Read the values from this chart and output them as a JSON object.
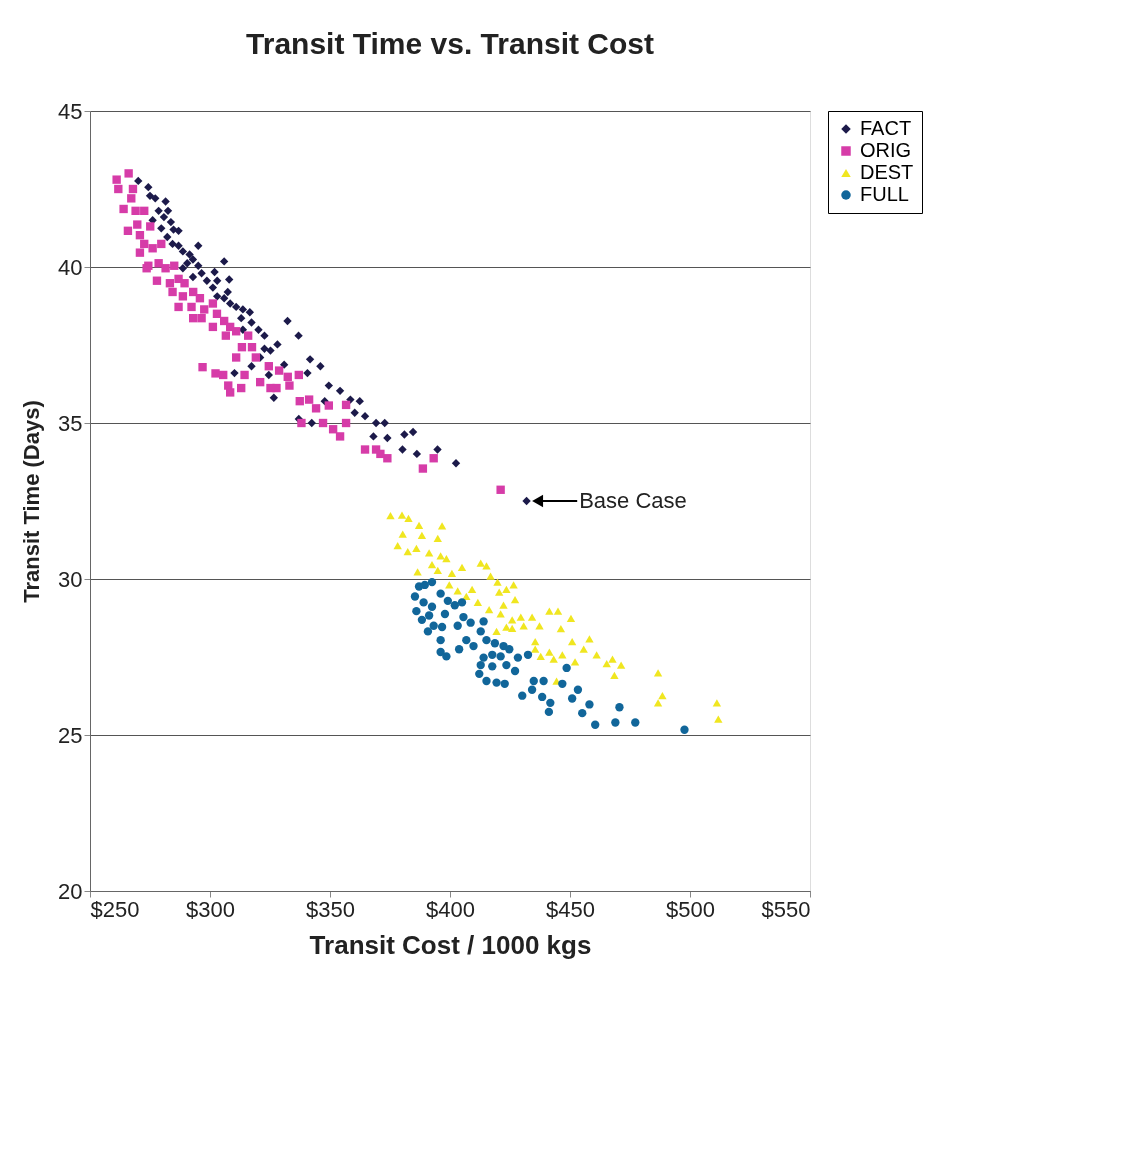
{
  "chart_data": {
    "type": "scatter",
    "title": "Transit Time vs. Transit Cost",
    "xlabel": "Transit Cost / 1000 kgs",
    "ylabel": "Transit Time (Days)",
    "xlim": [
      250,
      550
    ],
    "xticks": [
      {
        "value": 250,
        "label": "$250"
      },
      {
        "value": 300,
        "label": "$300"
      },
      {
        "value": 350,
        "label": "$350"
      },
      {
        "value": 400,
        "label": "$400"
      },
      {
        "value": 450,
        "label": "$450"
      },
      {
        "value": 500,
        "label": "$500"
      },
      {
        "value": 550,
        "label": "$550"
      }
    ],
    "ylim": [
      20,
      45
    ],
    "yticks": [
      20,
      25,
      30,
      35,
      40,
      45
    ],
    "grid": "y",
    "legend": "right",
    "annotations": [
      {
        "text": "Base Case",
        "x": 432,
        "y": 32.5
      }
    ],
    "series": [
      {
        "name": "FACT",
        "color": "#1c1a4a",
        "marker": "diamond",
        "x": [
          270.1,
          274.3,
          275.0,
          277.2,
          281.5,
          282.5,
          278.6,
          280.8,
          276.1,
          283.7,
          284.8,
          279.7,
          282.2,
          284.4,
          286.9,
          288.7,
          291.5,
          292.9,
          290.5,
          295.1,
          288.7,
          296.5,
          292.9,
          298.7,
          303.0,
          301.2,
          303.0,
          305.9,
          308.4,
          310.9,
          313.7,
          316.6,
          313.0,
          317.3,
          320.2,
          313.7,
          322.7,
          332.3,
          336.9,
          328.1,
          325.2,
          320.9,
          330.9,
          341.7,
          346.0,
          340.6,
          324.5,
          317.3,
          310.2,
          326.6,
          349.5,
          354.2,
          347.8,
          358.5,
          362.4,
          360.3,
          364.6,
          369.2,
          372.8,
          368.1,
          373.9,
          381.0,
          384.6,
          380.2,
          386.2,
          394.8,
          402.5,
          337.0,
          342.4,
          431.9,
          305.9,
          301.9,
          308.0,
          295.1,
          286.9,
          307.4,
          322.7
        ],
        "values": [
          42.76,
          42.56,
          42.28,
          42.2,
          42.1,
          41.8,
          41.8,
          41.6,
          41.5,
          41.44,
          41.2,
          41.24,
          40.96,
          40.74,
          40.68,
          40.5,
          40.4,
          40.24,
          40.12,
          40.04,
          39.96,
          39.8,
          39.68,
          39.56,
          39.56,
          39.34,
          39.06,
          39.0,
          38.83,
          38.72,
          38.64,
          38.55,
          38.36,
          38.22,
          37.99,
          37.99,
          37.8,
          38.27,
          37.8,
          37.52,
          37.32,
          37.1,
          36.87,
          37.04,
          36.82,
          36.6,
          36.54,
          36.82,
          36.6,
          35.81,
          36.2,
          36.03,
          35.7,
          35.75,
          35.7,
          35.33,
          35.22,
          35.0,
          35.0,
          34.57,
          34.52,
          34.63,
          34.71,
          34.15,
          34.01,
          34.15,
          33.71,
          35.13,
          35.0,
          32.5,
          40.18,
          39.84,
          39.6,
          40.68,
          41.16,
          39.2,
          37.38
        ]
      },
      {
        "name": "ORIG",
        "color": "#d63ca8",
        "marker": "square",
        "x": [
          261.1,
          266.1,
          261.8,
          267.9,
          267.2,
          264.0,
          269.0,
          272.6,
          265.8,
          269.7,
          270.8,
          275.1,
          272.6,
          270.8,
          276.1,
          279.7,
          274.3,
          278.6,
          273.6,
          281.5,
          285.1,
          277.9,
          283.3,
          286.9,
          289.4,
          284.4,
          288.7,
          293.0,
          286.9,
          292.3,
          295.8,
          297.6,
          301.2,
          293.0,
          296.5,
          302.9,
          305.9,
          301.2,
          308.4,
          310.9,
          306.6,
          315.9,
          313.3,
          317.5,
          319.1,
          310.9,
          296.9,
          302.3,
          305.5,
          307.6,
          313.0,
          308.4,
          314.4,
          320.9,
          325.2,
          324.5,
          328.8,
          332.4,
          337.0,
          333.1,
          327.7,
          337.4,
          341.3,
          344.2,
          338.1,
          347.1,
          351.3,
          349.5,
          356.7,
          354.2,
          356.7,
          364.6,
          369.2,
          373.9,
          371.0,
          388.7,
          393.2,
          421.1
        ],
        "values": [
          42.8,
          43.0,
          42.5,
          42.5,
          42.2,
          41.86,
          41.8,
          41.8,
          41.16,
          41.36,
          41.02,
          41.3,
          40.74,
          40.46,
          40.6,
          40.74,
          40.04,
          40.12,
          39.96,
          39.96,
          40.04,
          39.56,
          39.48,
          39.62,
          39.48,
          39.2,
          39.06,
          39.2,
          38.72,
          38.72,
          39.0,
          38.64,
          38.83,
          38.36,
          38.36,
          38.5,
          38.27,
          38.08,
          38.08,
          37.94,
          37.8,
          37.8,
          37.43,
          37.43,
          37.1,
          37.1,
          36.79,
          36.59,
          36.54,
          36.2,
          36.12,
          35.98,
          36.54,
          36.31,
          36.12,
          36.82,
          36.68,
          36.48,
          36.54,
          36.2,
          36.12,
          35.7,
          35.75,
          35.47,
          35.0,
          35.0,
          34.8,
          35.56,
          35.58,
          34.57,
          35.0,
          34.15,
          34.15,
          33.87,
          34.01,
          33.54,
          33.87,
          32.86
        ]
      },
      {
        "name": "DEST",
        "color": "#f0e620",
        "marker": "triangle",
        "x": [
          375.2,
          380.0,
          382.7,
          387.1,
          396.7,
          380.3,
          378.2,
          388.3,
          394.9,
          382.4,
          386.0,
          391.3,
          396.1,
          398.5,
          386.5,
          392.5,
          394.9,
          400.8,
          405.0,
          412.8,
          415.2,
          416.9,
          399.7,
          403.2,
          406.8,
          409.2,
          411.6,
          420.5,
          423.5,
          426.5,
          427.1,
          422.3,
          416.3,
          421.1,
          425.9,
          429.5,
          430.7,
          423.5,
          419.4,
          434.2,
          437.3,
          441.4,
          445.0,
          450.4,
          446.2,
          450.9,
          458.1,
          455.7,
          435.5,
          435.5,
          441.4,
          446.8,
          437.8,
          443.2,
          452.1,
          461.1,
          465.3,
          467.7,
          471.3,
          468.5,
          486.7,
          488.5,
          486.7,
          511.2,
          511.8,
          444.4,
          425.9,
          419.8
        ],
        "values": [
          32.03,
          32.05,
          31.94,
          31.72,
          31.7,
          31.44,
          31.07,
          31.4,
          31.3,
          30.88,
          30.98,
          30.84,
          30.74,
          30.65,
          30.23,
          30.46,
          30.28,
          30.18,
          30.37,
          30.51,
          30.42,
          30.09,
          29.81,
          29.62,
          29.44,
          29.67,
          29.25,
          29.58,
          29.67,
          29.81,
          29.34,
          29.16,
          29.02,
          28.88,
          28.69,
          28.78,
          28.5,
          28.46,
          28.32,
          28.78,
          28.5,
          28.97,
          28.97,
          28.74,
          28.41,
          27.99,
          28.08,
          27.75,
          27.99,
          27.75,
          27.66,
          27.57,
          27.52,
          27.43,
          27.34,
          27.57,
          27.29,
          27.43,
          27.24,
          26.91,
          26.99,
          26.26,
          26.03,
          26.03,
          25.51,
          26.73,
          28.42,
          29.9
        ]
      },
      {
        "name": "FULL",
        "color": "#11669a",
        "marker": "circle",
        "x": [
          392.5,
          387.1,
          385.4,
          389.0,
          386.0,
          391.3,
          388.3,
          396.1,
          399.1,
          393.2,
          390.8,
          397.9,
          402.0,
          405.0,
          396.7,
          396.1,
          405.6,
          403.2,
          408.6,
          414.0,
          412.8,
          406.8,
          409.8,
          415.2,
          418.7,
          422.3,
          424.7,
          417.6,
          414.0,
          421.1,
          428.3,
          432.5,
          412.8,
          417.6,
          423.5,
          427.1,
          412.2,
          415.2,
          419.4,
          422.8,
          396.1,
          398.5,
          403.8,
          434.9,
          439.0,
          434.2,
          438.4,
          446.8,
          448.6,
          430.1,
          441.8,
          441.2,
          450.9,
          453.3,
          455.1,
          458.1,
          470.6,
          460.5,
          468.9,
          477.2,
          497.7,
          389.5,
          392.5
        ],
        "values": [
          29.9,
          29.76,
          29.44,
          29.25,
          28.97,
          28.83,
          28.69,
          29.53,
          29.3,
          28.5,
          28.32,
          28.88,
          29.16,
          29.25,
          28.46,
          28.04,
          28.78,
          28.5,
          28.6,
          28.64,
          28.32,
          28.04,
          27.85,
          28.04,
          27.94,
          27.85,
          27.75,
          27.57,
          27.48,
          27.52,
          27.48,
          27.57,
          27.24,
          27.2,
          27.24,
          27.05,
          26.96,
          26.73,
          26.68,
          26.64,
          27.66,
          27.52,
          27.75,
          26.73,
          26.73,
          26.45,
          26.22,
          26.64,
          27.15,
          26.26,
          26.03,
          25.74,
          26.17,
          26.45,
          25.7,
          25.98,
          25.89,
          25.33,
          25.4,
          25.4,
          25.17,
          29.81,
          29.11
        ]
      }
    ]
  }
}
